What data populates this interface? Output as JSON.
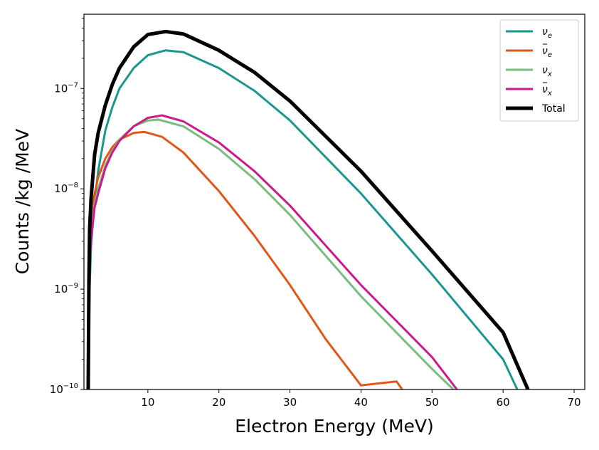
{
  "chart_data": {
    "type": "line",
    "xlabel": "Electron Energy (MeV)",
    "ylabel": "Counts /kg /MeV",
    "xlim": [
      1,
      71.5
    ],
    "ylim": [
      1e-10,
      5.5e-07
    ],
    "yscale": "log",
    "grid": false,
    "legend_position": "top-right",
    "x_ticks": [
      10,
      20,
      30,
      40,
      50,
      60,
      70
    ],
    "x_tick_labels": [
      "10",
      "20",
      "30",
      "40",
      "50",
      "60",
      "70"
    ],
    "y_ticks": [
      1e-10,
      1e-09,
      1e-08,
      1e-07
    ],
    "y_tick_labels": [
      {
        "base": "10",
        "exp": "−10"
      },
      {
        "base": "10",
        "exp": "−9"
      },
      {
        "base": "10",
        "exp": "−8"
      },
      {
        "base": "10",
        "exp": "−7"
      }
    ],
    "series": [
      {
        "name": "νe",
        "legend": {
          "main": "ν",
          "sub": "e",
          "bar": false
        },
        "color": "#1a9690",
        "line_width": 3,
        "x": [
          1.6,
          1.8,
          2,
          2.5,
          3,
          4,
          5,
          6,
          8,
          10,
          12.5,
          15,
          20,
          25,
          30,
          40,
          50,
          60,
          62
        ],
        "y": [
          1.2e-10,
          1e-09,
          2.7e-09,
          7.5e-09,
          1.5e-08,
          3.8e-08,
          6.5e-08,
          1e-07,
          1.6e-07,
          2.15e-07,
          2.4e-07,
          2.3e-07,
          1.6e-07,
          9.5e-08,
          4.8e-08,
          9e-09,
          1.4e-09,
          2e-10,
          1e-10
        ]
      },
      {
        "name": "ν̄e",
        "legend": {
          "main": "ν",
          "sub": "e",
          "bar": true
        },
        "color": "#e0561b",
        "line_width": 3,
        "x": [
          1.6,
          1.8,
          2,
          2.5,
          3,
          4,
          5,
          6,
          8,
          9.5,
          12,
          15,
          20,
          25,
          30,
          35,
          40,
          45,
          45.8
        ],
        "y": [
          1e-09,
          2.8e-09,
          5e-09,
          9e-09,
          1.3e-08,
          2e-08,
          2.6e-08,
          3.1e-08,
          3.6e-08,
          3.7e-08,
          3.3e-08,
          2.3e-08,
          9.5e-09,
          3.4e-09,
          1.1e-09,
          3.2e-10,
          1.1e-10,
          1.2e-10,
          1e-10
        ]
      },
      {
        "name": "νx",
        "legend": {
          "main": "ν",
          "sub": "x",
          "bar": false
        },
        "color": "#77bd7f",
        "line_width": 3,
        "x": [
          1.6,
          1.8,
          2,
          2.5,
          3,
          4,
          5,
          6,
          8,
          10,
          11.5,
          15,
          20,
          25,
          30,
          40,
          50,
          53
        ],
        "y": [
          9e-10,
          2.2e-09,
          3.8e-09,
          7e-09,
          1e-08,
          1.7e-08,
          2.4e-08,
          3.1e-08,
          4.2e-08,
          4.8e-08,
          4.9e-08,
          4.2e-08,
          2.5e-08,
          1.25e-08,
          5.5e-09,
          8.5e-10,
          1.6e-10,
          1e-10
        ]
      },
      {
        "name": "ν̄x",
        "legend": {
          "main": "ν",
          "sub": "x",
          "bar": true
        },
        "color": "#cc1a8c",
        "line_width": 3,
        "x": [
          1.6,
          1.8,
          2,
          2.5,
          3,
          4,
          5,
          6,
          8,
          10,
          12,
          15,
          20,
          25,
          30,
          40,
          50,
          53.5
        ],
        "y": [
          7e-10,
          1.7e-09,
          3.2e-09,
          6.5e-09,
          9e-09,
          1.6e-08,
          2.3e-08,
          3e-08,
          4.2e-08,
          5.1e-08,
          5.4e-08,
          4.7e-08,
          2.9e-08,
          1.5e-08,
          6.8e-09,
          1.1e-09,
          2.1e-10,
          1e-10
        ]
      },
      {
        "name": "Total",
        "legend": {
          "main": "Total",
          "sub": "",
          "bar": false
        },
        "color": "#000000",
        "line_width": 5,
        "x": [
          1.6,
          1.7,
          1.8,
          2,
          2.5,
          3,
          4,
          5,
          6,
          8,
          10,
          12.5,
          15,
          20,
          25,
          30,
          40,
          50,
          60,
          63.5
        ],
        "y": [
          1e-10,
          1.2e-09,
          4e-09,
          8e-09,
          2.2e-08,
          3.6e-08,
          6.8e-08,
          1.1e-07,
          1.6e-07,
          2.6e-07,
          3.45e-07,
          3.7e-07,
          3.5e-07,
          2.4e-07,
          1.45e-07,
          7.5e-08,
          1.5e-08,
          2.4e-09,
          3.7e-10,
          1e-10
        ]
      }
    ]
  }
}
